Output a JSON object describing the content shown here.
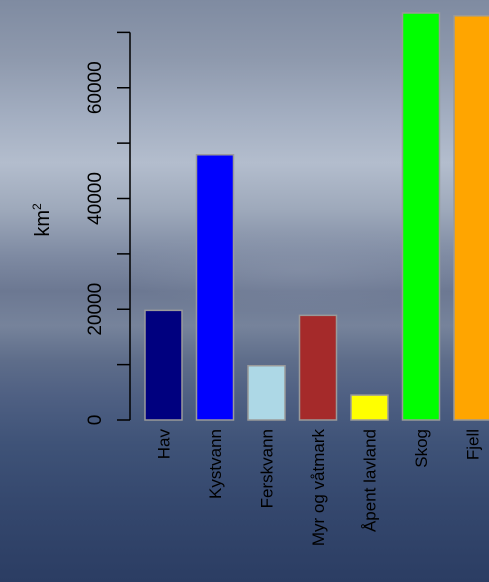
{
  "chart_data": {
    "type": "bar",
    "title": "",
    "xlabel": "",
    "ylabel": "km",
    "ylabel_superscript": "2",
    "categories": [
      "Hav",
      "Kystvann",
      "Ferskvann",
      "Myr og våtmark",
      "Åpent lavland",
      "Skog",
      "Fjell"
    ],
    "values": [
      19800,
      47900,
      9800,
      18900,
      4500,
      73500,
      73000
    ],
    "colors": [
      "#00007f",
      "#0000ff",
      "#add8e6",
      "#a52a2a",
      "#ffff00",
      "#00ff00",
      "#ffa500"
    ],
    "yticks": [
      0,
      20000,
      40000,
      60000
    ],
    "yticks_minor": [
      10000,
      30000,
      50000,
      70000
    ],
    "ytick_labels": [
      "0",
      "20000",
      "40000",
      "60000"
    ],
    "ylim": [
      0,
      73500
    ],
    "grid": false,
    "legend": "none"
  }
}
